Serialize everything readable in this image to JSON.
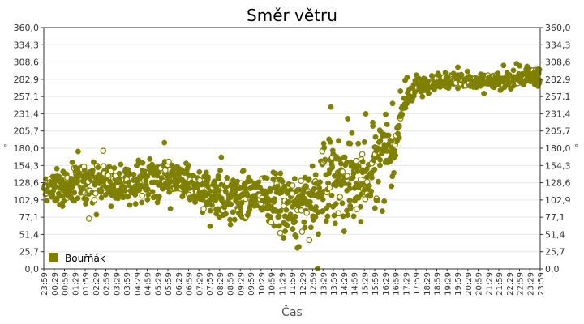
{
  "chart_data": {
    "type": "scatter",
    "title": "Směr větru",
    "xlabel": "Čas",
    "ylabel": "°",
    "ylim": [
      0,
      360
    ],
    "yticks": [
      "0,0",
      "25,7",
      "51,4",
      "77,1",
      "102,9",
      "128,6",
      "154,3",
      "180,0",
      "205,7",
      "231,4",
      "257,1",
      "282,9",
      "308,6",
      "334,3",
      "360,0"
    ],
    "xticks": [
      "23:59",
      "00:29",
      "00:59",
      "01:29",
      "01:59",
      "02:29",
      "02:59",
      "03:29",
      "03:59",
      "04:29",
      "04:59",
      "05:29",
      "05:59",
      "06:29",
      "06:59",
      "07:29",
      "07:59",
      "08:29",
      "08:59",
      "09:29",
      "09:59",
      "10:29",
      "10:59",
      "11:29",
      "11:59",
      "12:29",
      "12:59",
      "13:29",
      "13:59",
      "14:29",
      "14:59",
      "15:29",
      "15:59",
      "16:29",
      "16:59",
      "17:29",
      "17:59",
      "18:29",
      "18:59",
      "19:29",
      "19:59",
      "20:29",
      "20:59",
      "21:29",
      "21:59",
      "22:29",
      "22:59",
      "23:29",
      "23:59"
    ],
    "grid": true,
    "legend_position": "bottom-left",
    "series": [
      {
        "name": "Bouřňák",
        "color": "#808000",
        "x_hours": [
          0.0,
          0.5,
          1.0,
          1.5,
          2.0,
          2.5,
          3.0,
          3.5,
          4.0,
          4.5,
          5.0,
          5.5,
          6.0,
          6.5,
          7.0,
          7.5,
          8.0,
          8.5,
          9.0,
          9.5,
          10.0,
          10.5,
          11.0,
          11.5,
          12.0,
          12.5,
          13.0,
          13.5,
          14.0,
          14.5,
          15.0,
          15.5,
          16.0,
          16.5,
          17.0,
          17.25,
          17.5,
          17.75,
          18.0,
          18.5,
          19.0,
          19.5,
          20.0,
          20.5,
          21.0,
          21.5,
          22.0,
          22.5,
          23.0,
          23.5,
          24.0
        ],
        "y_center": [
          118,
          122,
          120,
          125,
          128,
          132,
          130,
          126,
          124,
          128,
          133,
          138,
          135,
          130,
          122,
          115,
          112,
          110,
          108,
          106,
          110,
          112,
          105,
          100,
          95,
          98,
          108,
          125,
          135,
          130,
          125,
          150,
          160,
          165,
          185,
          230,
          255,
          262,
          270,
          276,
          280,
          281,
          282,
          280,
          278,
          281,
          280,
          280,
          284,
          290,
          288
        ],
        "y_spread": [
          20,
          22,
          24,
          26,
          28,
          28,
          26,
          24,
          24,
          26,
          30,
          30,
          26,
          22,
          22,
          26,
          30,
          34,
          36,
          34,
          32,
          30,
          36,
          40,
          44,
          50,
          56,
          60,
          62,
          60,
          60,
          60,
          62,
          65,
          30,
          20,
          16,
          14,
          12,
          10,
          10,
          10,
          10,
          10,
          10,
          10,
          12,
          12,
          12,
          12,
          12
        ],
        "n_points": 1400
      }
    ]
  }
}
